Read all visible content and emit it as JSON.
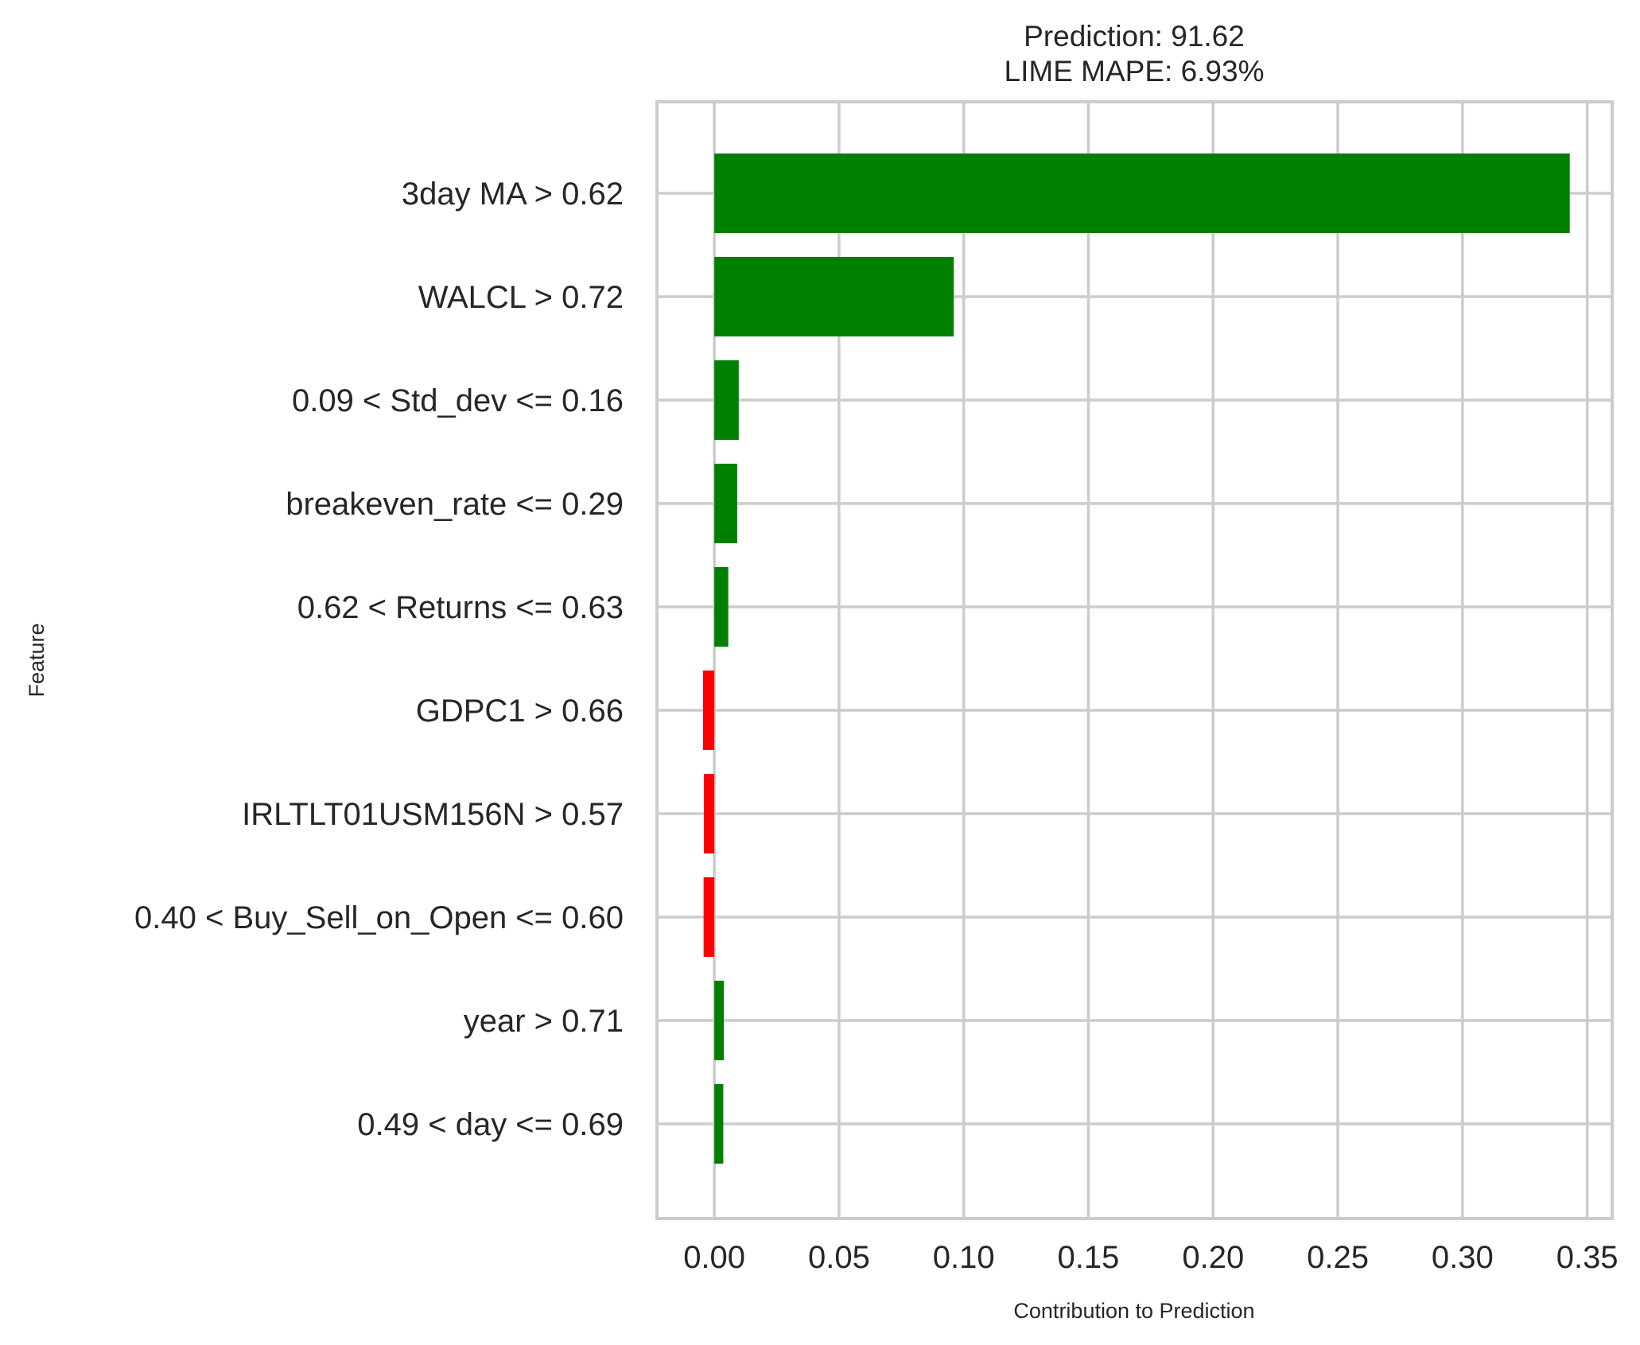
{
  "chart_data": {
    "type": "bar",
    "orientation": "horizontal",
    "title_lines": [
      "Prediction: 91.62",
      "LIME MAPE: 6.93%"
    ],
    "xlabel": "Contribution to Prediction",
    "ylabel": "Feature",
    "xlim": [
      -0.023,
      0.36
    ],
    "xticks": [
      0.0,
      0.05,
      0.1,
      0.15,
      0.2,
      0.25,
      0.3,
      0.35
    ],
    "xtick_labels": [
      "0.00",
      "0.05",
      "0.10",
      "0.15",
      "0.20",
      "0.25",
      "0.30",
      "0.35"
    ],
    "grid": true,
    "categories": [
      "3day MA > 0.62",
      "WALCL > 0.72",
      "0.09 < Std_dev <= 0.16",
      "breakeven_rate <= 0.29",
      "0.62 < Returns <= 0.63",
      "GDPC1 > 0.66",
      "IRLTLT01USM156N > 0.57",
      "0.40 < Buy_Sell_on_Open <= 0.60",
      "year > 0.71",
      "0.49 < day <= 0.69"
    ],
    "values": [
      0.343,
      0.096,
      0.0098,
      0.0092,
      0.0056,
      -0.0045,
      -0.0042,
      -0.0043,
      0.0038,
      0.0036
    ],
    "colors": {
      "positive": "#008000",
      "negative": "#ff0000",
      "grid": "#cccccc",
      "spine": "#cccccc",
      "text": "#262626"
    }
  }
}
